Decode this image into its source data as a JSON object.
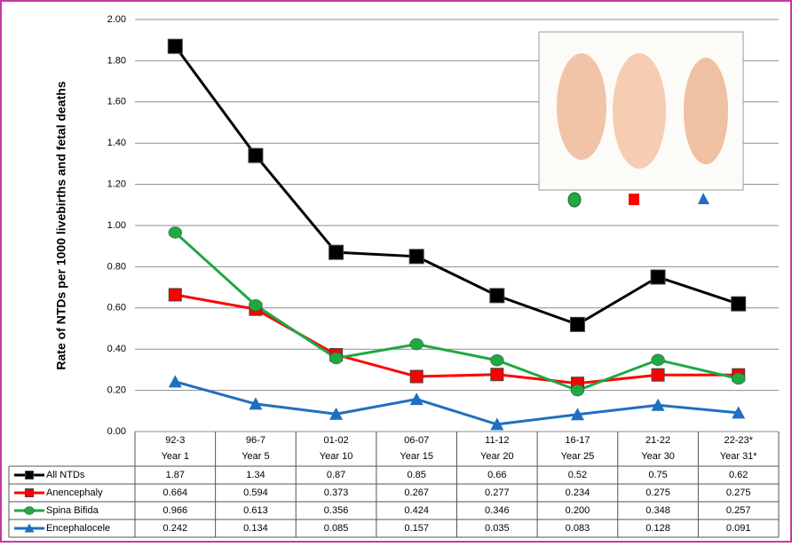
{
  "chart_data": {
    "type": "line",
    "y_axis_label": "Rate of NTDs per 1000 livebirths and fetal deaths",
    "categories": [
      "92-3",
      "96-7",
      "01-02",
      "06-07",
      "11-12",
      "16-17",
      "21-22",
      "22-23*"
    ],
    "category_sublabels": [
      "Year 1",
      "Year 5",
      "Year 10",
      "Year 15",
      "Year 20",
      "Year 25",
      "Year 30",
      "Year 31*"
    ],
    "ylim": [
      0,
      2
    ],
    "yticks": [
      {
        "value": 0,
        "label": "0.00"
      },
      {
        "value": 0.2,
        "label": "0.20"
      },
      {
        "value": 0.4,
        "label": "0.40"
      },
      {
        "value": 0.6,
        "label": "0.60"
      },
      {
        "value": 0.8,
        "label": "0.80"
      },
      {
        "value": 1,
        "label": "1.00"
      },
      {
        "value": 1.2,
        "label": "1.20"
      },
      {
        "value": 1.4,
        "label": "1.40"
      },
      {
        "value": 1.6,
        "label": "1.60"
      },
      {
        "value": 1.8,
        "label": "1.80"
      },
      {
        "value": 2,
        "label": "2.00"
      }
    ],
    "grid": true,
    "series": [
      {
        "name": "All NTDs",
        "color": "#000000",
        "marker": "square",
        "values": [
          1.87,
          1.34,
          0.87,
          0.85,
          0.66,
          0.52,
          0.75,
          0.62
        ]
      },
      {
        "name": "Anencephaly",
        "color": "#ff0000",
        "marker": "square",
        "values": [
          0.664,
          0.594,
          0.373,
          0.267,
          0.277,
          0.234,
          0.275,
          0.275
        ]
      },
      {
        "name": "Spina Bifida",
        "color": "#1fa843",
        "marker": "circle",
        "values": [
          0.966,
          0.613,
          0.356,
          0.424,
          0.346,
          0.2,
          0.348,
          0.257
        ],
        "value_labels": [
          "0.966",
          "0.613",
          "0.356",
          "0.424",
          "0.346",
          "0.200",
          "0.348",
          "0.257"
        ]
      },
      {
        "name": "Encephalocele",
        "color": "#1f6fc0",
        "marker": "triangle",
        "values": [
          0.242,
          0.134,
          0.085,
          0.157,
          0.035,
          0.083,
          0.128,
          0.091
        ]
      }
    ]
  }
}
